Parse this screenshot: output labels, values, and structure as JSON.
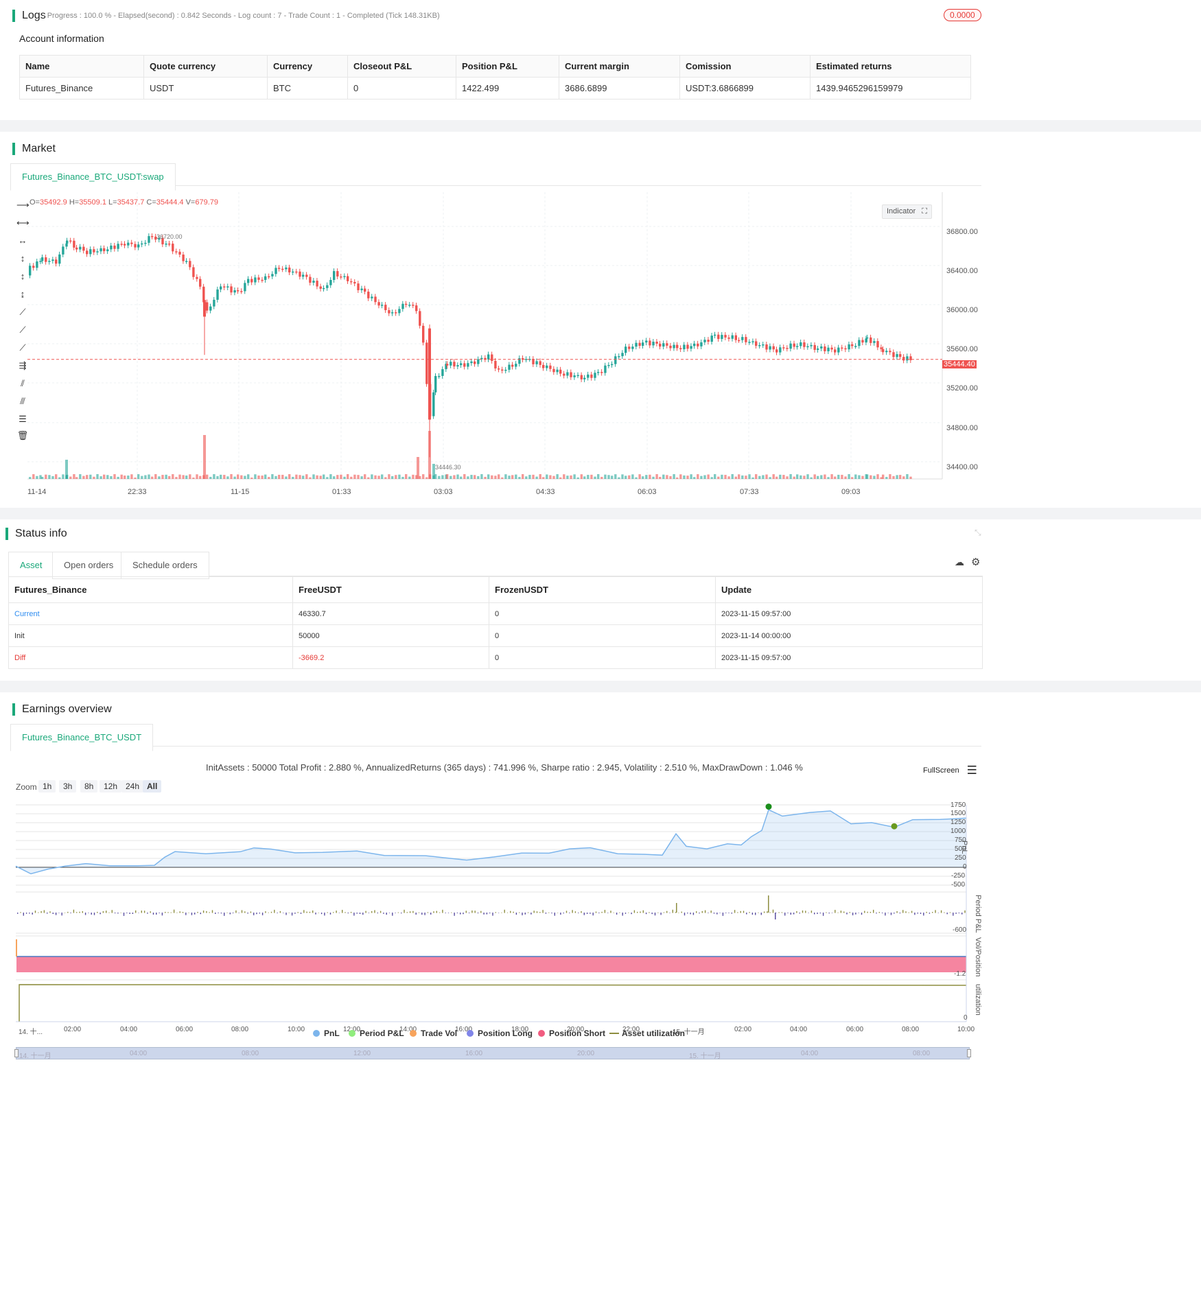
{
  "logs": {
    "title": "Logs",
    "progress_text": "- Progress : 100.0 % - Elapsed(second) : 0.842  Seconds - Log count : 7 - Trade Count : 1 - Completed (Tick 148.31KB)",
    "badge": "0.0000"
  },
  "account": {
    "title": "Account information",
    "headers": [
      "Name",
      "Quote currency",
      "Currency",
      "Closeout P&L",
      "Position P&L",
      "Current margin",
      "Comission",
      "Estimated returns"
    ],
    "row": [
      "Futures_Binance",
      "USDT",
      "BTC",
      "0",
      "1422.499",
      "3686.6899",
      "USDT:3.6866899",
      "1439.9465296159979"
    ]
  },
  "market": {
    "title": "Market",
    "tab": "Futures_Binance_BTC_USDT:swap",
    "ohlc_o_label": "O=",
    "ohlc_o": "35492.9",
    "ohlc_h_label": "H=",
    "ohlc_h": "35509.1",
    "ohlc_l_label": "L=",
    "ohlc_l": "35437.7",
    "ohlc_c_label": "C=",
    "ohlc_c": "35444.4",
    "ohlc_v_label": "V=",
    "ohlc_v": "679.79",
    "indicator_btn": "Indicator",
    "high_label": "36720.00",
    "low_label": "34446.30",
    "price_tag": "35444.40",
    "y_ticks": [
      "36800.00",
      "36400.00",
      "36000.00",
      "35600.00",
      "35200.00",
      "34800.00",
      "34400.00"
    ],
    "x_ticks": [
      "11-14",
      "22:33",
      "11-15",
      "01:33",
      "03:03",
      "04:33",
      "06:03",
      "07:33",
      "09:03"
    ],
    "colors": {
      "up": "#26a69a",
      "down": "#ef5350",
      "price_line": "#ef5350"
    }
  },
  "status": {
    "title": "Status info",
    "tabs": [
      "Asset",
      "Open orders",
      "Schedule orders"
    ],
    "headers": [
      "Futures_Binance",
      "FreeUSDT",
      "FrozenUSDT",
      "Update"
    ],
    "rows": [
      [
        "Current",
        "46330.7",
        "0",
        "2023-11-15 09:57:00"
      ],
      [
        "Init",
        "50000",
        "0",
        "2023-11-14 00:00:00"
      ],
      [
        "Diff",
        "-3669.2",
        "0",
        "2023-11-15 09:57:00"
      ]
    ]
  },
  "earnings": {
    "title": "Earnings overview",
    "tab": "Futures_Binance_BTC_USDT",
    "summary": "InitAssets : 50000 Total Profit : 2.880 %, AnnualizedReturns (365 days) : 741.996 %, Sharpe ratio : 2.945, Volatility : 2.510 %, MaxDrawDown : 1.046 %",
    "fullscreen": "FullScreen",
    "zoom_label": "Zoom",
    "zoom_buttons": [
      "1h",
      "3h",
      "8h",
      "12h",
      "24h",
      "All"
    ],
    "pnl_ticks": [
      "1750",
      "1500",
      "1250",
      "1000",
      "750",
      "500",
      "250",
      "0",
      "-250",
      "-500"
    ],
    "period_tick": "-600",
    "vol_tick": "-1.2",
    "util_tick": "0",
    "axis_titles": [
      "PnL",
      "Period P&L",
      "Vol/Position",
      "utilization"
    ],
    "x_ticks": [
      "14. 十...",
      "02:00",
      "04:00",
      "06:00",
      "08:00",
      "10:00",
      "12:00",
      "14:00",
      "16:00",
      "18:00",
      "20:00",
      "22:00",
      "15. 十一月",
      "02:00",
      "04:00",
      "06:00",
      "08:00",
      "10:00"
    ],
    "nav_ticks": [
      "14. 十一月",
      "04:00",
      "08:00",
      "12:00",
      "16:00",
      "20:00",
      "15. 十一月",
      "04:00",
      "08:00"
    ],
    "legend": [
      {
        "label": "PnL",
        "color": "#7cb5ec"
      },
      {
        "label": "Period P&L",
        "color": "#90ed7d"
      },
      {
        "label": "Trade Vol",
        "color": "#f7a35c"
      },
      {
        "label": "Position Long",
        "color": "#8085e9"
      },
      {
        "label": "Position Short",
        "color": "#f15c80"
      },
      {
        "label": "Asset utilization",
        "color": "#8d8d3f"
      }
    ]
  }
}
